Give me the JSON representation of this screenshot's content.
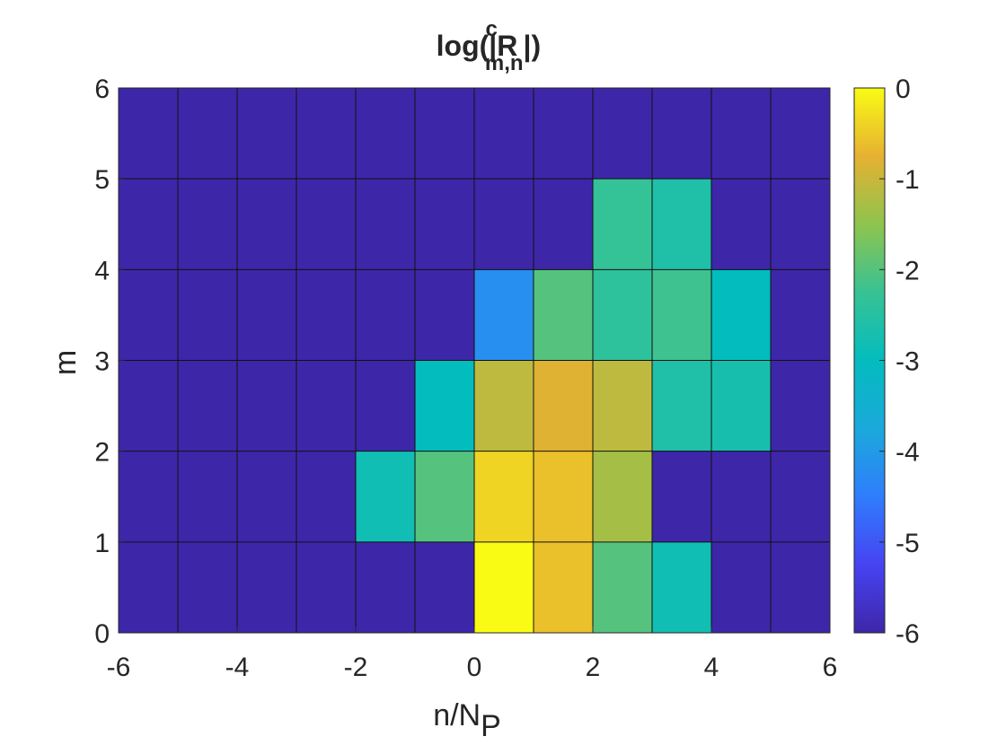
{
  "chart_data": {
    "type": "heatmap",
    "title": {
      "base": "log(|R",
      "sup": "c",
      "sub": "m,n",
      "end": "|)"
    },
    "xlabel": {
      "base": "n/N",
      "sub": "P"
    },
    "ylabel": "m",
    "xlim": [
      -6,
      6
    ],
    "ylim": [
      0,
      6
    ],
    "x_edges": [
      -6,
      -5,
      -4,
      -3,
      -2,
      -1,
      0,
      1,
      2,
      3,
      4,
      5,
      6
    ],
    "y_edges": [
      0,
      1,
      2,
      3,
      4,
      5,
      6
    ],
    "x_ticks": [
      -6,
      -4,
      -2,
      0,
      2,
      4,
      6
    ],
    "y_ticks": [
      0,
      1,
      2,
      3,
      4,
      5,
      6
    ],
    "x_tick_labels": [
      "-6",
      "-4",
      "-2",
      "0",
      "2",
      "4",
      "6"
    ],
    "y_tick_labels": [
      "0",
      "1",
      "2",
      "3",
      "4",
      "5",
      "6"
    ],
    "colormap": "parula",
    "clim": [
      -6,
      0
    ],
    "colorbar_ticks": [
      0,
      -1,
      -2,
      -3,
      -4,
      -5,
      -6
    ],
    "colorbar_tick_labels": [
      "0",
      "-1",
      "-2",
      "-3",
      "-4",
      "-5",
      "-6"
    ],
    "grid": false,
    "values_note_rows": "row index = m (0..5), column index = n/N_P cell from -6 to 6",
    "values": [
      [
        -6,
        -6,
        -6,
        -6,
        -6,
        -6,
        0,
        -0.6,
        -2.0,
        -2.8,
        -6,
        -6
      ],
      [
        -6,
        -6,
        -6,
        -6,
        -2.8,
        -2.0,
        -0.4,
        -0.6,
        -1.3,
        -6,
        -6,
        -6
      ],
      [
        -6,
        -6,
        -6,
        -6,
        -6,
        -3.0,
        -1.1,
        -0.8,
        -1.1,
        -2.6,
        -2.7,
        -6
      ],
      [
        -6,
        -6,
        -6,
        -6,
        -6,
        -6,
        -4.2,
        -2.0,
        -2.4,
        -2.2,
        -3.0,
        -6
      ],
      [
        -6,
        -6,
        -6,
        -6,
        -6,
        -6,
        -6,
        -6,
        -2.3,
        -2.6,
        -6,
        -6
      ],
      [
        -6,
        -6,
        -6,
        -6,
        -6,
        -6,
        -6,
        -6,
        -6,
        -6,
        -6,
        -6
      ]
    ]
  }
}
